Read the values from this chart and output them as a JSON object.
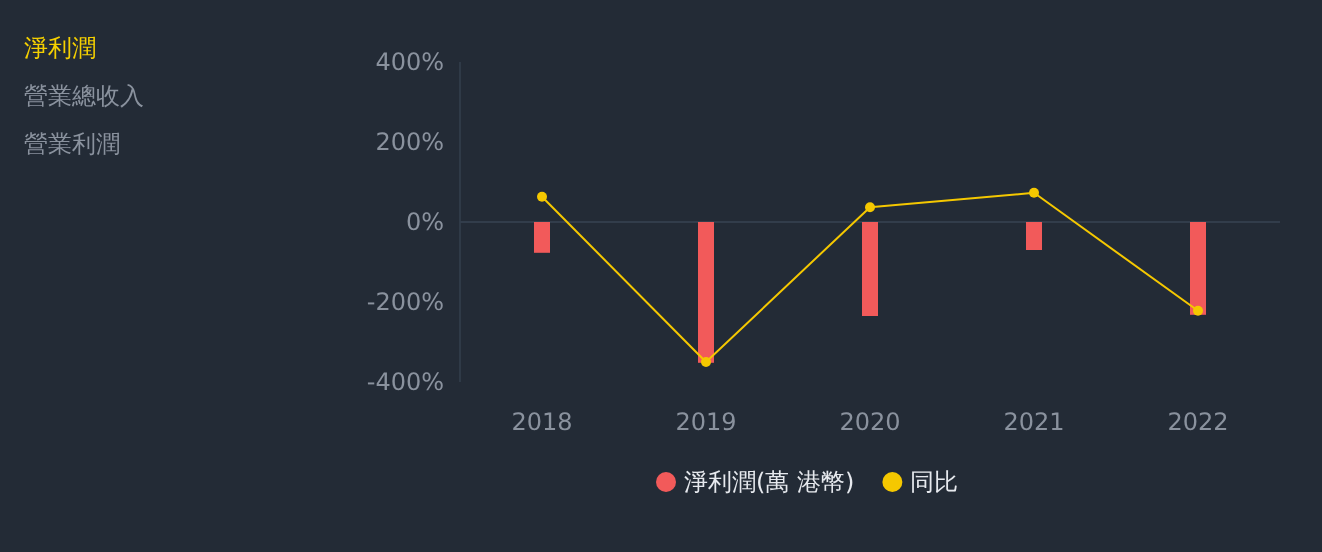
{
  "chart_data": {
    "type": "bar",
    "categories": [
      "2018",
      "2019",
      "2020",
      "2021",
      "2022"
    ],
    "series": [
      {
        "name": "淨利潤(萬 港幣)",
        "color": "#f25a5a",
        "values": [
          -77,
          -352,
          -235,
          -70,
          -232
        ]
      },
      {
        "name": "同比",
        "type": "line",
        "color": "#f5c800",
        "values": [
          63,
          -350,
          37,
          73,
          -222
        ]
      }
    ],
    "ylim": [
      -400,
      400
    ],
    "yticks": [
      {
        "value": -400,
        "label": "-400%"
      },
      {
        "value": -200,
        "label": "-200%"
      },
      {
        "value": 0,
        "label": "0%"
      },
      {
        "value": 200,
        "label": "200%"
      },
      {
        "value": 400,
        "label": "400%"
      }
    ],
    "annotations": [
      "淨利潤",
      "營業總收入",
      "營業利潤"
    ],
    "legend": "bottom",
    "marker": "circle",
    "line_style": "solid"
  }
}
